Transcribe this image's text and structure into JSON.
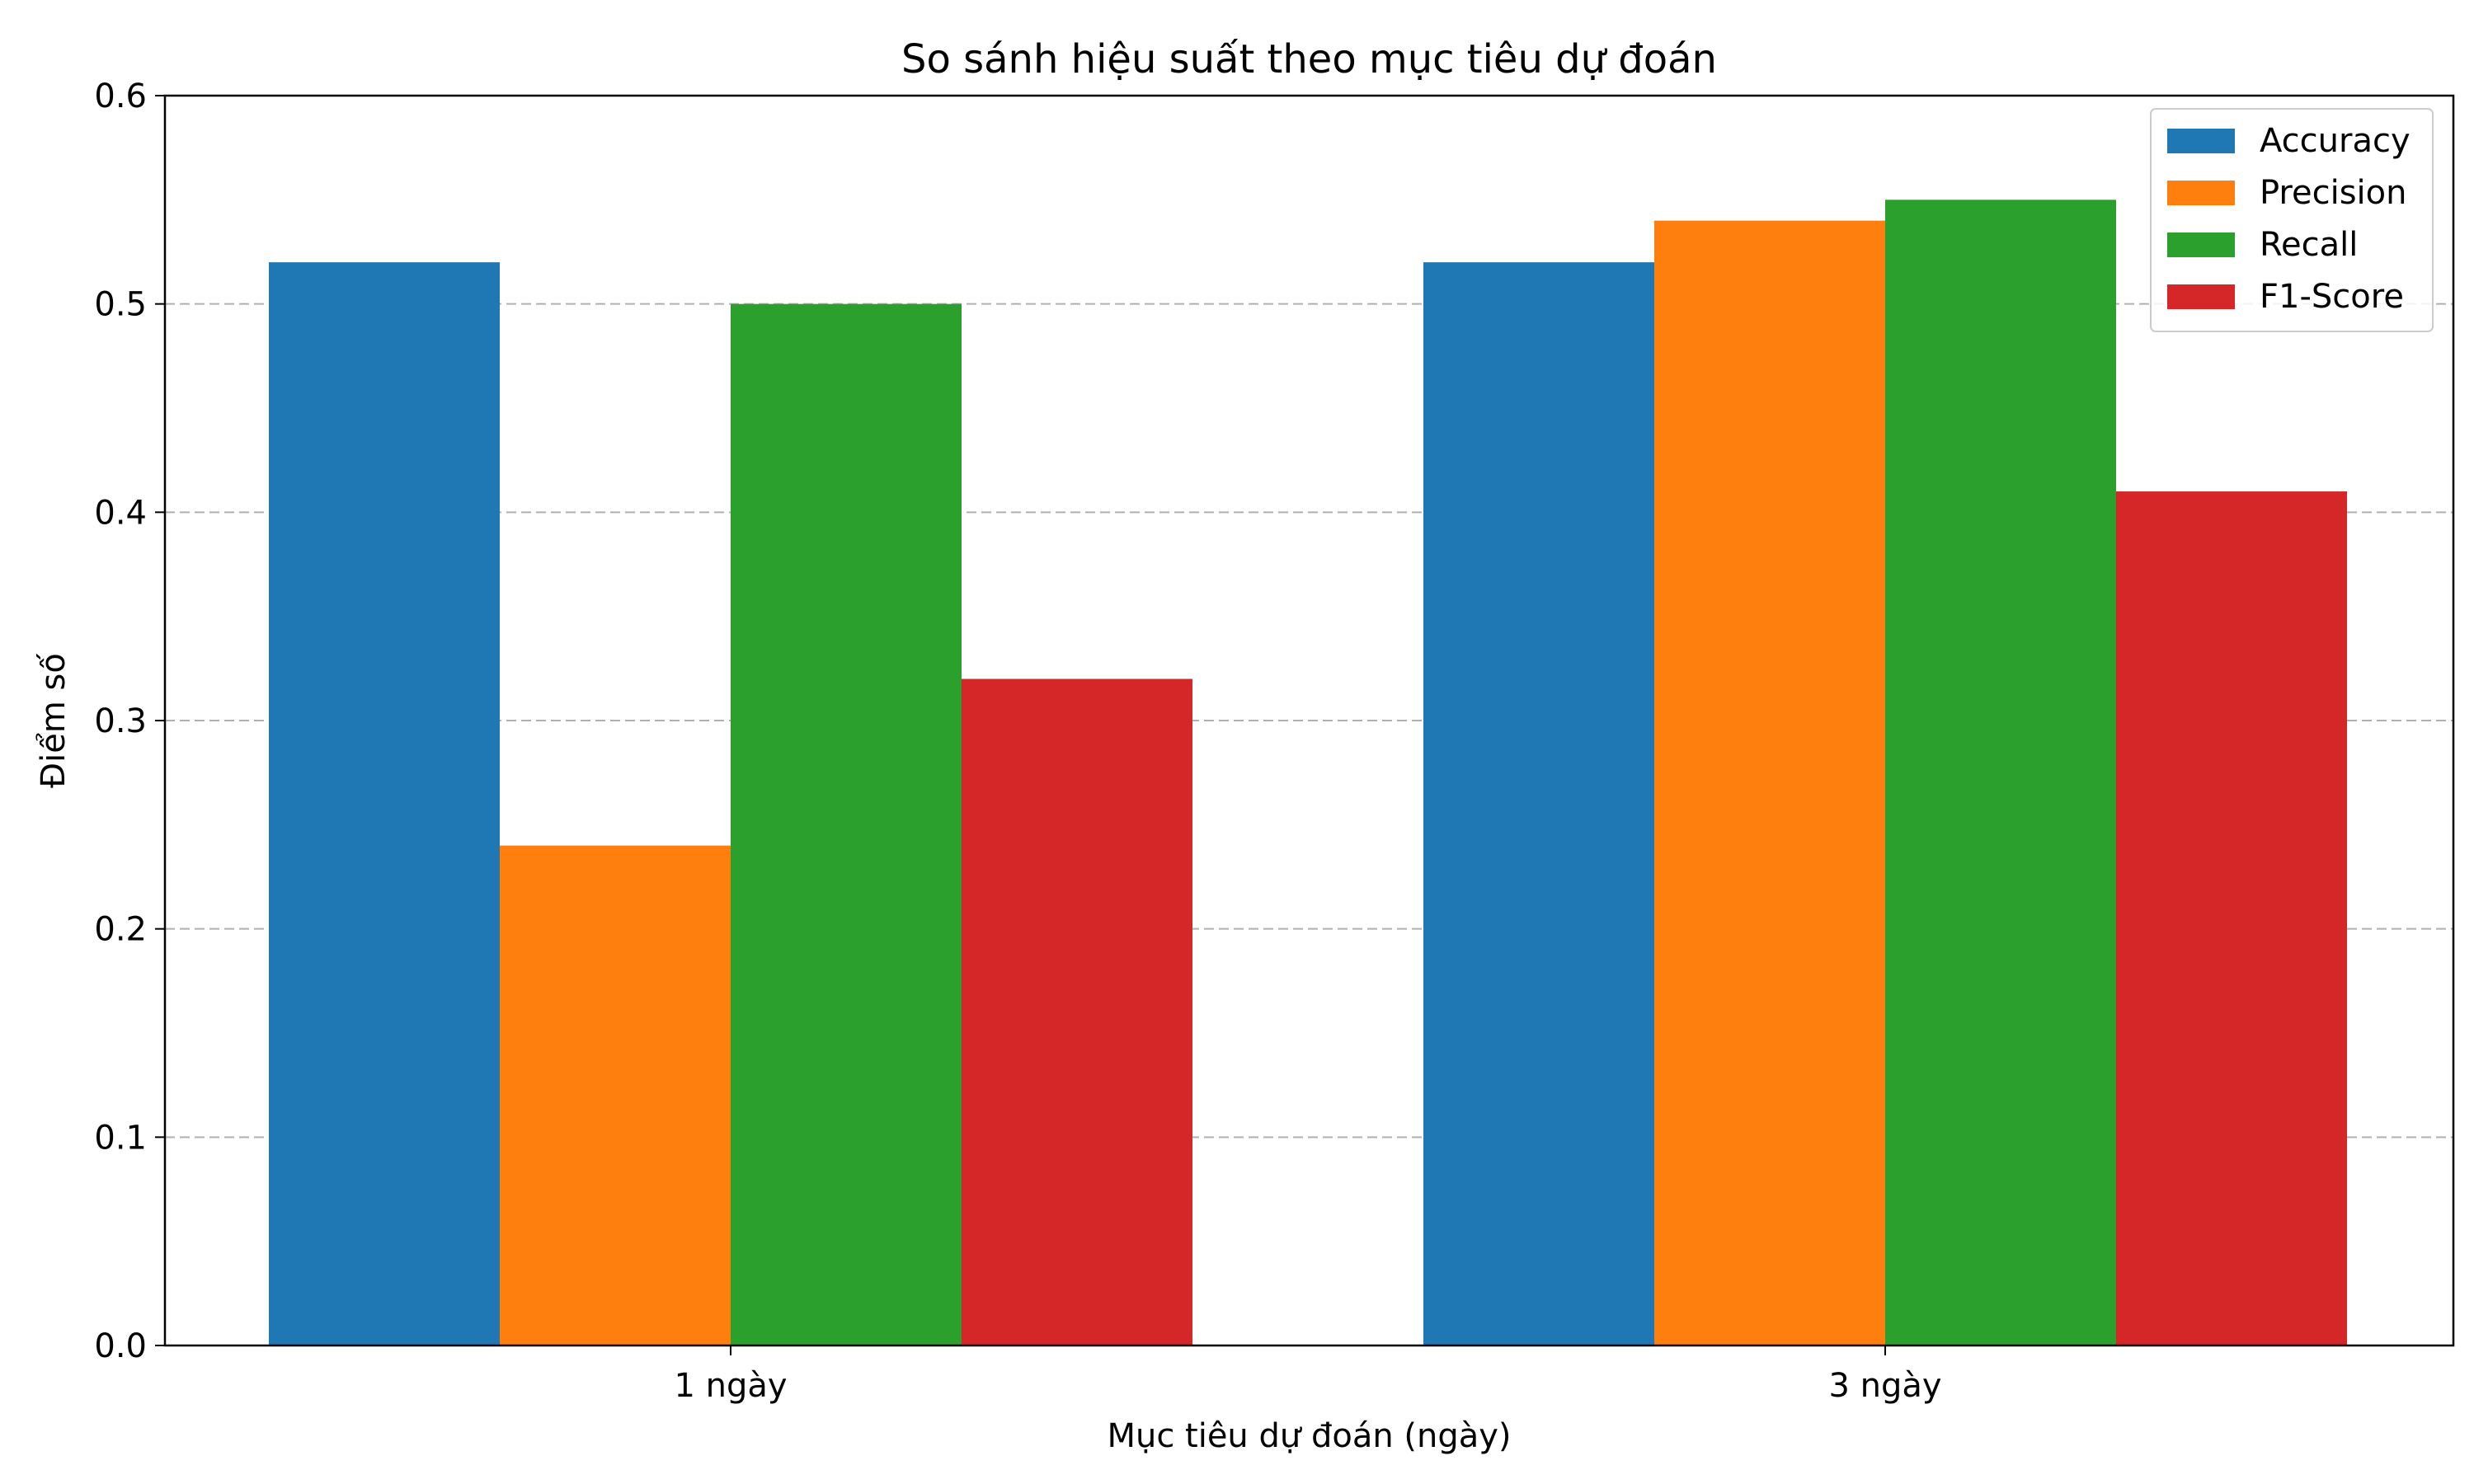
{
  "chart_data": {
    "type": "bar",
    "title": "So sánh hiệu suất theo mục tiêu dự đoán",
    "xlabel": "Mục tiêu dự đoán (ngày)",
    "ylabel": "Điểm số",
    "categories": [
      "1 ngày",
      "3 ngày"
    ],
    "series": [
      {
        "name": "Accuracy",
        "values": [
          0.52,
          0.52
        ],
        "color": "#1f77b4"
      },
      {
        "name": "Precision",
        "values": [
          0.24,
          0.54
        ],
        "color": "#ff7f0e"
      },
      {
        "name": "Recall",
        "values": [
          0.5,
          0.55
        ],
        "color": "#2ca02c"
      },
      {
        "name": "F1-Score",
        "values": [
          0.32,
          0.41
        ],
        "color": "#d62728"
      }
    ],
    "ylim": [
      0,
      0.6
    ],
    "yticks": [
      "0.0",
      "0.1",
      "0.2",
      "0.3",
      "0.4",
      "0.5",
      "0.6"
    ],
    "grid": "y-dashed",
    "legend_position": "top-right"
  }
}
